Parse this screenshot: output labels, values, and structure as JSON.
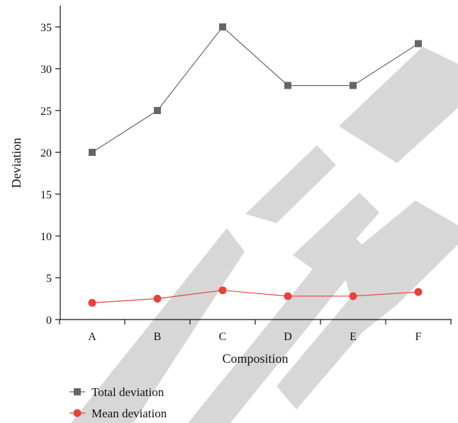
{
  "chart_data": {
    "type": "line",
    "title": "",
    "xlabel": "Composition",
    "ylabel": "Deviation",
    "categories": [
      "A",
      "B",
      "C",
      "D",
      "E",
      "F"
    ],
    "ylim": [
      0,
      37
    ],
    "yticks": [
      0,
      5,
      10,
      15,
      20,
      25,
      30,
      35
    ],
    "grid": false,
    "legend_position": "bottom-left",
    "watermark": "RETRACTED",
    "series": [
      {
        "name": "Total deviation",
        "values": [
          20,
          25,
          35,
          28,
          28,
          33
        ],
        "color": "#666666",
        "marker": "square"
      },
      {
        "name": "Mean deviation",
        "values": [
          2.0,
          2.5,
          3.5,
          2.8,
          2.8,
          3.3
        ],
        "color": "#e8413a",
        "marker": "circle"
      }
    ]
  }
}
